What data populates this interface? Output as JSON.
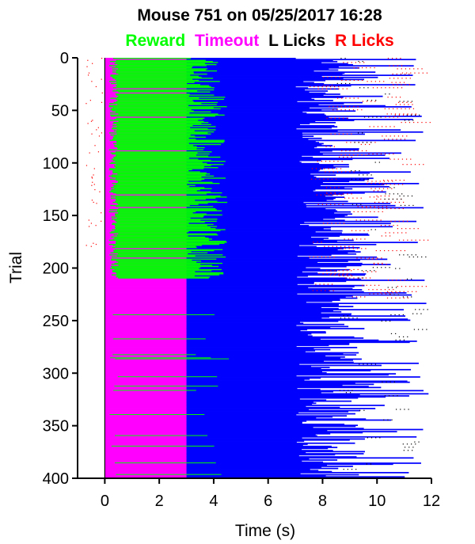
{
  "chart_data": {
    "type": "raster",
    "title": "Mouse 751 on 05/25/2017 16:28",
    "legend": [
      {
        "label": "Reward",
        "color": "#00ff00"
      },
      {
        "label": "Timeout",
        "color": "#ff00ff"
      },
      {
        "label": "L Licks",
        "color": "#000000"
      },
      {
        "label": "R Licks",
        "color": "#ff0000"
      }
    ],
    "xlabel": "Time (s)",
    "ylabel": "Trial",
    "xlim": [
      -1,
      12
    ],
    "ylim": [
      0,
      400
    ],
    "y_inverted": true,
    "xticks": [
      0,
      2,
      4,
      6,
      8,
      10,
      12
    ],
    "yticks": [
      0,
      50,
      100,
      150,
      200,
      250,
      300,
      350,
      400
    ],
    "n_trials": 400,
    "phases": [
      {
        "name": "response window",
        "color": "#ff00ff",
        "start": 0,
        "end": 3
      },
      {
        "name": "iti",
        "color": "#0000ff",
        "start": 3,
        "end_range": [
          6.8,
          11.9
        ]
      }
    ],
    "segments": [
      {
        "trials": [
          0,
          210
        ],
        "dominant_outcome": "Reward",
        "reward_start": 0.2,
        "reward_end_range": [
          2.4,
          4.6
        ]
      },
      {
        "trials": [
          210,
          400
        ],
        "dominant_outcome": "Timeout",
        "sporadic_rewards": true
      }
    ],
    "colors": {
      "green": "#00ff00",
      "magenta": "#ff00ff",
      "blue": "#0000ff",
      "red": "#ff0000",
      "black": "#000000"
    }
  }
}
